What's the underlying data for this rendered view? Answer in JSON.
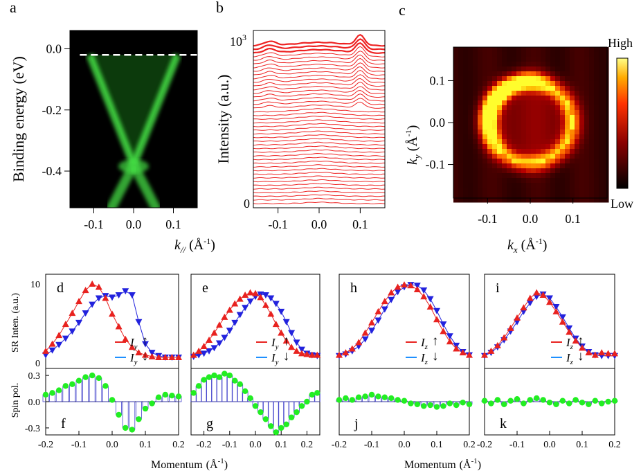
{
  "panel_letters": {
    "a": "a",
    "b": "b",
    "c": "c",
    "d": "d",
    "e": "e",
    "f": "f",
    "g": "g",
    "h": "h",
    "i": "i",
    "j": "j",
    "k": "k"
  },
  "colors": {
    "arpes_green": "#44dd44",
    "spin_red": "#e8221f",
    "spin_blue": "#2222dd",
    "pol_green": "#22ee22",
    "edc_red": "#ee2222",
    "line_blue": "#1e90ff"
  },
  "chart_data": [
    {
      "id": "a",
      "type": "heatmap",
      "ylabel": "Binding energy (eV)",
      "xlabel_main": "k",
      "xlabel_sub": "//",
      "xlabel_unit": " (Å",
      "xticks": [
        "-0.1",
        "0.0",
        "0.1"
      ],
      "yticks": [
        "0.0",
        "-0.2",
        "-0.4"
      ],
      "xlim": [
        -0.16,
        0.16
      ],
      "ylim": [
        -0.52,
        0.06
      ],
      "dirac_point": -0.38,
      "fermi_level": -0.02,
      "band_kf": 0.11,
      "colormap": "black-green"
    },
    {
      "id": "b",
      "type": "line",
      "ylabel": "Intensity (a.u.)",
      "xticks": [
        "-0.1",
        "0.0",
        "0.1"
      ],
      "ytick_top": "10",
      "ytick_top_exp": "3",
      "ytick_bottom": "0",
      "xlim": [
        -0.16,
        0.16
      ],
      "curve_count": 44,
      "peak_k": 0.1
    },
    {
      "id": "c",
      "type": "heatmap",
      "ylabel_main": "k",
      "ylabel_sub": "y",
      "ylabel_unit": " (Å",
      "xlabel_main": "k",
      "xlabel_sub": "x",
      "xlabel_unit": " (Å",
      "xticks": [
        "-0.1",
        "0.0",
        "0.1"
      ],
      "yticks": [
        "0.1",
        "0.0",
        "-0.1"
      ],
      "xlim": [
        -0.18,
        0.18
      ],
      "ylim": [
        -0.18,
        0.18
      ],
      "ring_radius": 0.1,
      "colorbar_high": "High",
      "colorbar_low": "Low",
      "colormap": "black-red-yellow"
    },
    {
      "id": "d",
      "type": "scatter",
      "ylabel": "SR Inten. (a.u.)",
      "yticks": [
        "10",
        "0"
      ],
      "legend": {
        "symbol": "I",
        "sub": "y",
        "up": "↑",
        "down": "↓"
      },
      "up": {
        "x": [
          -0.2,
          -0.18,
          -0.16,
          -0.14,
          -0.12,
          -0.1,
          -0.08,
          -0.06,
          -0.04,
          -0.02,
          0,
          0.02,
          0.04,
          0.06,
          0.08,
          0.1,
          0.12,
          0.14,
          0.16,
          0.18,
          0.2
        ],
        "y": [
          1.5,
          2.4,
          3.5,
          4.9,
          6.3,
          7.8,
          9.2,
          10,
          9.6,
          8.2,
          6.2,
          4.6,
          3,
          2,
          1.3,
          1,
          0.8,
          0.7,
          0.7,
          0.7,
          0.7
        ]
      },
      "down": {
        "x": [
          -0.2,
          -0.18,
          -0.16,
          -0.14,
          -0.12,
          -0.1,
          -0.08,
          -0.06,
          -0.04,
          -0.02,
          0,
          0.02,
          0.04,
          0.06,
          0.08,
          0.1,
          0.12,
          0.14,
          0.16,
          0.18,
          0.2
        ],
        "y": [
          1,
          1.6,
          2.3,
          3.1,
          4,
          5.1,
          6.3,
          7.4,
          8.2,
          8.5,
          8.3,
          8.6,
          9.1,
          8.6,
          5.2,
          2.4,
          1.3,
          0.9,
          0.7,
          0.7,
          0.7
        ]
      }
    },
    {
      "id": "e",
      "type": "scatter",
      "legend": {
        "symbol": "I",
        "sub": "y",
        "up": "↑",
        "down": "↓"
      },
      "up": {
        "x": [
          -0.24,
          -0.22,
          -0.2,
          -0.18,
          -0.16,
          -0.14,
          -0.12,
          -0.1,
          -0.08,
          -0.06,
          -0.04,
          -0.02,
          0,
          0.02,
          0.04,
          0.06,
          0.08,
          0.1,
          0.12,
          0.14,
          0.16,
          0.18,
          0.2,
          0.22,
          0.24
        ],
        "y": [
          1,
          1.5,
          2.1,
          2.9,
          3.8,
          4.8,
          5.8,
          6.7,
          7.5,
          8.1,
          8.6,
          8.9,
          8.8,
          8.3,
          7.3,
          6.2,
          4.9,
          3.8,
          2.8,
          2,
          1.5,
          1.2,
          1.1,
          1,
          1
        ]
      },
      "down": {
        "x": [
          -0.24,
          -0.22,
          -0.2,
          -0.18,
          -0.16,
          -0.14,
          -0.12,
          -0.1,
          -0.08,
          -0.06,
          -0.04,
          -0.02,
          0,
          0.02,
          0.04,
          0.06,
          0.08,
          0.1,
          0.12,
          0.14,
          0.16,
          0.18,
          0.2,
          0.22,
          0.24
        ],
        "y": [
          0.8,
          1,
          1.2,
          1.5,
          1.9,
          2.5,
          3.2,
          4.1,
          5.1,
          6.1,
          7,
          7.8,
          8.4,
          8.7,
          8.6,
          8.2,
          7.5,
          6.5,
          5.2,
          3.8,
          2.6,
          1.7,
          1.2,
          1,
          0.9
        ]
      }
    },
    {
      "id": "h",
      "type": "scatter",
      "legend": {
        "symbol": "I",
        "sub": "z",
        "up": "↑",
        "down": "↓"
      },
      "up": {
        "x": [
          -0.2,
          -0.18,
          -0.16,
          -0.14,
          -0.12,
          -0.1,
          -0.08,
          -0.06,
          -0.04,
          -0.02,
          0,
          0.02,
          0.04,
          0.06,
          0.08,
          0.1,
          0.12,
          0.14,
          0.16,
          0.18,
          0.2
        ],
        "y": [
          1,
          1.3,
          1.8,
          2.6,
          3.8,
          5.1,
          6.5,
          7.8,
          8.9,
          9.6,
          9.9,
          9.8,
          9.3,
          8.4,
          7.1,
          5.5,
          4,
          2.7,
          1.8,
          1.3,
          1
        ]
      },
      "down": {
        "x": [
          -0.2,
          -0.18,
          -0.16,
          -0.14,
          -0.12,
          -0.1,
          -0.08,
          -0.06,
          -0.04,
          -0.02,
          0,
          0.02,
          0.04,
          0.06,
          0.08,
          0.1,
          0.12,
          0.14,
          0.16,
          0.18,
          0.2
        ],
        "y": [
          0.9,
          1.1,
          1.5,
          2.1,
          3,
          4.1,
          5.4,
          6.8,
          8,
          9,
          9.6,
          9.9,
          9.8,
          9.2,
          8.1,
          6.6,
          4.9,
          3.4,
          2.2,
          1.4,
          1
        ]
      }
    },
    {
      "id": "i",
      "type": "scatter",
      "legend": {
        "symbol": "I",
        "sub": "z",
        "up": "↑",
        "down": "↓"
      },
      "up": {
        "x": [
          -0.2,
          -0.18,
          -0.16,
          -0.14,
          -0.12,
          -0.1,
          -0.08,
          -0.06,
          -0.04,
          -0.02,
          0,
          0.02,
          0.04,
          0.06,
          0.08,
          0.1,
          0.12,
          0.14,
          0.16,
          0.18,
          0.2
        ],
        "y": [
          1,
          1.5,
          2.2,
          3.2,
          4.4,
          5.7,
          7,
          8.2,
          8.9,
          8.6,
          7.7,
          6.5,
          5.2,
          3.9,
          2.8,
          1.9,
          1.3,
          1,
          1.3,
          1.2,
          1.2
        ]
      },
      "down": {
        "x": [
          -0.2,
          -0.18,
          -0.16,
          -0.14,
          -0.12,
          -0.1,
          -0.08,
          -0.06,
          -0.04,
          -0.02,
          0,
          0.02,
          0.04,
          0.06,
          0.08,
          0.1,
          0.12,
          0.14,
          0.16,
          0.18,
          0.2
        ],
        "y": [
          0.9,
          1.3,
          2,
          2.9,
          4,
          5.2,
          6.5,
          7.6,
          8.4,
          8.7,
          8.2,
          7.1,
          5.8,
          4.4,
          3.1,
          2.1,
          1.4,
          1,
          0.9,
          0.9,
          0.9
        ]
      }
    },
    {
      "id": "f",
      "type": "bar",
      "ylabel": "Spin pol.",
      "yticks": [
        "0.3",
        "0.0",
        "-0.3"
      ],
      "xticks": [
        "-0.2",
        "-0.1",
        "0.0",
        "0.1",
        "0.2"
      ],
      "xlim": [
        -0.2,
        0.2
      ],
      "ylim": [
        -0.38,
        0.38
      ],
      "x": [
        -0.2,
        -0.18,
        -0.16,
        -0.14,
        -0.12,
        -0.1,
        -0.08,
        -0.06,
        -0.04,
        -0.02,
        0,
        0.02,
        0.04,
        0.06,
        0.08,
        0.1,
        0.12,
        0.14,
        0.16,
        0.18,
        0.2
      ],
      "y": [
        0.08,
        0.1,
        0.13,
        0.18,
        0.2,
        0.24,
        0.28,
        0.3,
        0.27,
        0.18,
        0.02,
        -0.15,
        -0.3,
        -0.32,
        -0.2,
        -0.08,
        -0.02,
        0.05,
        0.08,
        0.07,
        0.06
      ]
    },
    {
      "id": "g",
      "type": "bar",
      "xticks": [
        "-0.2",
        "-0.1",
        "0.0",
        "0.1",
        "0.2"
      ],
      "xlim": [
        -0.25,
        0.25
      ],
      "ylim": [
        -0.38,
        0.38
      ],
      "x": [
        -0.24,
        -0.22,
        -0.2,
        -0.18,
        -0.16,
        -0.14,
        -0.12,
        -0.1,
        -0.08,
        -0.06,
        -0.04,
        -0.02,
        0,
        0.02,
        0.04,
        0.06,
        0.08,
        0.1,
        0.12,
        0.14,
        0.16,
        0.18,
        0.2,
        0.22,
        0.24
      ],
      "y": [
        0.1,
        0.18,
        0.25,
        0.28,
        0.3,
        0.28,
        0.32,
        0.3,
        0.24,
        0.2,
        0.12,
        0.04,
        -0.05,
        -0.12,
        -0.2,
        -0.28,
        -0.35,
        -0.3,
        -0.26,
        -0.18,
        -0.12,
        -0.05,
        0,
        0.08,
        0.1
      ]
    },
    {
      "id": "j",
      "type": "bar",
      "xticks": [
        "-0.2",
        "-0.1",
        "0.0",
        "0.1",
        "0.2"
      ],
      "xlim": [
        -0.2,
        0.2
      ],
      "ylim": [
        -0.38,
        0.38
      ],
      "x": [
        -0.2,
        -0.18,
        -0.16,
        -0.14,
        -0.12,
        -0.1,
        -0.08,
        -0.06,
        -0.04,
        -0.02,
        0,
        0.02,
        0.04,
        0.06,
        0.08,
        0.1,
        0.12,
        0.14,
        0.16,
        0.18,
        0.2
      ],
      "y": [
        0.02,
        0.04,
        0.02,
        0.05,
        0.06,
        0.08,
        0.06,
        0.05,
        0.04,
        0.02,
        0.01,
        -0.02,
        -0.03,
        -0.05,
        -0.04,
        -0.06,
        -0.05,
        -0.02,
        -0.04,
        -0.01,
        -0.03
      ]
    },
    {
      "id": "k",
      "type": "bar",
      "xticks": [
        "-0.2",
        "-0.1",
        "0.0",
        "0.1",
        "0.2"
      ],
      "xlim": [
        -0.2,
        0.2
      ],
      "ylim": [
        -0.38,
        0.38
      ],
      "x": [
        -0.2,
        -0.18,
        -0.16,
        -0.14,
        -0.12,
        -0.1,
        -0.08,
        -0.06,
        -0.04,
        -0.02,
        0,
        0.02,
        0.04,
        0.06,
        0.08,
        0.1,
        0.12,
        0.14,
        0.16,
        0.18,
        0.2
      ],
      "y": [
        0.01,
        -0.02,
        0.02,
        -0.03,
        0.01,
        0.03,
        -0.02,
        0.02,
        0.04,
        0.02,
        -0.01,
        -0.03,
        0.01,
        -0.02,
        0.02,
        -0.01,
        -0.03,
        0.01,
        -0.02,
        0,
        0.01
      ]
    }
  ],
  "bottom_xlabel": {
    "text": "Momentum",
    "unit": "(Å"
  },
  "angstrom_exp": "-1",
  "unit_close": ")"
}
